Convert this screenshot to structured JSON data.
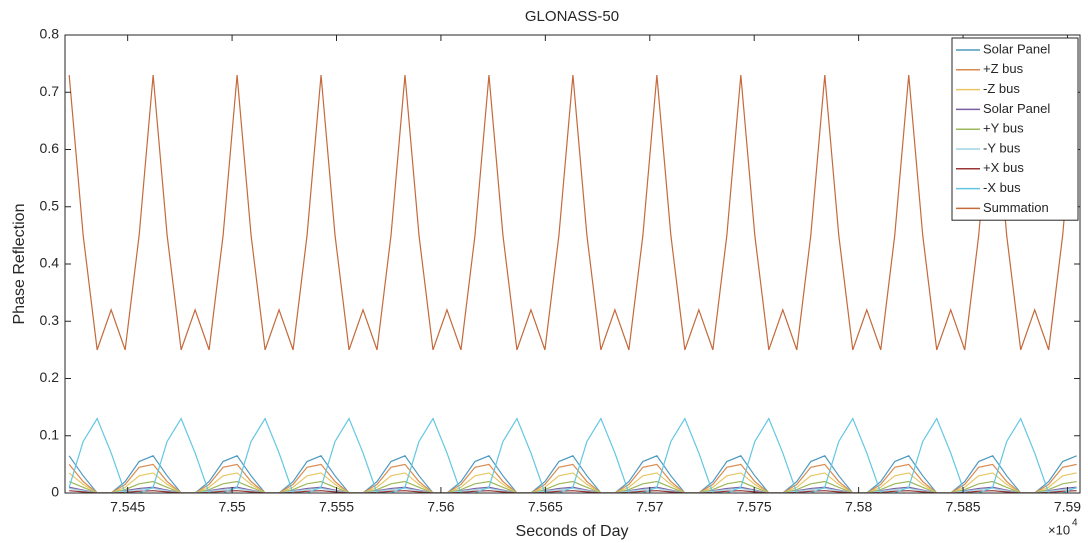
{
  "chart_data": {
    "type": "line",
    "title": "GLONASS-50",
    "xlabel": "Seconds of Day",
    "ylabel": "Phase Reflection",
    "x_multiplier": {
      "base": "×10",
      "exponent": "4"
    },
    "xlim": [
      75420,
      75906
    ],
    "ylim": [
      0,
      0.8
    ],
    "xticks": [
      {
        "value": 75450,
        "label": "7.545"
      },
      {
        "value": 75500,
        "label": "7.55"
      },
      {
        "value": 75550,
        "label": "7.555"
      },
      {
        "value": 75600,
        "label": "7.56"
      },
      {
        "value": 75650,
        "label": "7.565"
      },
      {
        "value": 75700,
        "label": "7.57"
      },
      {
        "value": 75750,
        "label": "7.575"
      },
      {
        "value": 75800,
        "label": "7.58"
      },
      {
        "value": 75850,
        "label": "7.585"
      },
      {
        "value": 75900,
        "label": "7.59"
      }
    ],
    "yticks": [
      0,
      0.1,
      0.2,
      0.3,
      0.4,
      0.5,
      0.6,
      0.7,
      0.8
    ],
    "grid": false,
    "legend": "upper right",
    "x": [
      75422,
      75428.7,
      75435.4,
      75442.1,
      75448.8,
      75455.5,
      75462.2,
      75468.9,
      75475.6,
      75482.3,
      75489,
      75495.7,
      75502.4,
      75509.1,
      75515.8,
      75522.5,
      75529.2,
      75535.9,
      75542.6,
      75549.3,
      75556,
      75562.7,
      75569.4,
      75576.1,
      75582.8,
      75589.5,
      75596.2,
      75602.9,
      75609.6,
      75616.3,
      75623,
      75629.7,
      75636.4,
      75643.1,
      75649.8,
      75656.5,
      75663.2,
      75669.9,
      75676.6,
      75683.3,
      75690,
      75696.7,
      75703.4,
      75710.1,
      75716.8,
      75723.5,
      75730.2,
      75736.9,
      75743.6,
      75750.3,
      75757,
      75763.7,
      75770.4,
      75777.1,
      75783.8,
      75790.5,
      75797.2,
      75803.9,
      75810.6,
      75817.3,
      75824,
      75830.7,
      75837.4,
      75844.1,
      75850.8,
      75857.5,
      75864.2,
      75870.9,
      75877.6,
      75884.3,
      75891,
      75897.7,
      75904.4
    ],
    "series": [
      {
        "name": "Solar Panel",
        "color": "#4f9ac0",
        "values": [
          0.065,
          0.03,
          0,
          0,
          0.02,
          0.055,
          0.065,
          0.03,
          0,
          0,
          0.02,
          0.055,
          0.065,
          0.03,
          0,
          0,
          0.02,
          0.055,
          0.065,
          0.03,
          0,
          0,
          0.02,
          0.055,
          0.065,
          0.03,
          0,
          0,
          0.02,
          0.055,
          0.065,
          0.03,
          0,
          0,
          0.02,
          0.055,
          0.065,
          0.03,
          0,
          0,
          0.02,
          0.055,
          0.065,
          0.03,
          0,
          0,
          0.02,
          0.055,
          0.065,
          0.03,
          0,
          0,
          0.02,
          0.055,
          0.065,
          0.03,
          0,
          0,
          0.02,
          0.055,
          0.065,
          0.03,
          0,
          0,
          0.02,
          0.055,
          0.065,
          0.03,
          0,
          0,
          0.02,
          0.055,
          0.065
        ]
      },
      {
        "name": "+Z bus",
        "color": "#d98a50",
        "values": [
          0.05,
          0.02,
          0,
          0,
          0.015,
          0.045,
          0.05,
          0.02,
          0,
          0,
          0.015,
          0.045,
          0.05,
          0.02,
          0,
          0,
          0.015,
          0.045,
          0.05,
          0.02,
          0,
          0,
          0.015,
          0.045,
          0.05,
          0.02,
          0,
          0,
          0.015,
          0.045,
          0.05,
          0.02,
          0,
          0,
          0.015,
          0.045,
          0.05,
          0.02,
          0,
          0,
          0.015,
          0.045,
          0.05,
          0.02,
          0,
          0,
          0.015,
          0.045,
          0.05,
          0.02,
          0,
          0,
          0.015,
          0.045,
          0.05,
          0.02,
          0,
          0,
          0.015,
          0.045,
          0.05,
          0.02,
          0,
          0,
          0.015,
          0.045,
          0.05,
          0.02,
          0,
          0,
          0.015,
          0.045,
          0.05
        ]
      },
      {
        "name": "-Z bus",
        "color": "#e8c560",
        "values": [
          0.035,
          0.015,
          0,
          0,
          0.01,
          0.03,
          0.035,
          0.015,
          0,
          0,
          0.01,
          0.03,
          0.035,
          0.015,
          0,
          0,
          0.01,
          0.03,
          0.035,
          0.015,
          0,
          0,
          0.01,
          0.03,
          0.035,
          0.015,
          0,
          0,
          0.01,
          0.03,
          0.035,
          0.015,
          0,
          0,
          0.01,
          0.03,
          0.035,
          0.015,
          0,
          0,
          0.01,
          0.03,
          0.035,
          0.015,
          0,
          0,
          0.01,
          0.03,
          0.035,
          0.015,
          0,
          0,
          0.01,
          0.03,
          0.035,
          0.015,
          0,
          0,
          0.01,
          0.03,
          0.035,
          0.015,
          0,
          0,
          0.01,
          0.03,
          0.035,
          0.015,
          0,
          0,
          0.01,
          0.03,
          0.035
        ]
      },
      {
        "name": "Solar Panel",
        "color": "#7b5ea3",
        "values": [
          0.01,
          0.005,
          0,
          0,
          0.004,
          0.008,
          0.01,
          0.005,
          0,
          0,
          0.004,
          0.008,
          0.01,
          0.005,
          0,
          0,
          0.004,
          0.008,
          0.01,
          0.005,
          0,
          0,
          0.004,
          0.008,
          0.01,
          0.005,
          0,
          0,
          0.004,
          0.008,
          0.01,
          0.005,
          0,
          0,
          0.004,
          0.008,
          0.01,
          0.005,
          0,
          0,
          0.004,
          0.008,
          0.01,
          0.005,
          0,
          0,
          0.004,
          0.008,
          0.01,
          0.005,
          0,
          0,
          0.004,
          0.008,
          0.01,
          0.005,
          0,
          0,
          0.004,
          0.008,
          0.01,
          0.005,
          0,
          0,
          0.004,
          0.008,
          0.01,
          0.005,
          0,
          0,
          0.004,
          0.008,
          0.01
        ]
      },
      {
        "name": "+Y bus",
        "color": "#9cb85c",
        "values": [
          0.02,
          0.01,
          0,
          0,
          0.006,
          0.016,
          0.02,
          0.01,
          0,
          0,
          0.006,
          0.016,
          0.02,
          0.01,
          0,
          0,
          0.006,
          0.016,
          0.02,
          0.01,
          0,
          0,
          0.006,
          0.016,
          0.02,
          0.01,
          0,
          0,
          0.006,
          0.016,
          0.02,
          0.01,
          0,
          0,
          0.006,
          0.016,
          0.02,
          0.01,
          0,
          0,
          0.006,
          0.016,
          0.02,
          0.01,
          0,
          0,
          0.006,
          0.016,
          0.02,
          0.01,
          0,
          0,
          0.006,
          0.016,
          0.02,
          0.01,
          0,
          0,
          0.006,
          0.016,
          0.02,
          0.01,
          0,
          0,
          0.006,
          0.016,
          0.02,
          0.01,
          0,
          0,
          0.006,
          0.016,
          0.02
        ]
      },
      {
        "name": "-Y bus",
        "color": "#9fd4e4",
        "values": [
          0.008,
          0.004,
          0,
          0,
          0.003,
          0.006,
          0.008,
          0.004,
          0,
          0,
          0.003,
          0.006,
          0.008,
          0.004,
          0,
          0,
          0.003,
          0.006,
          0.008,
          0.004,
          0,
          0,
          0.003,
          0.006,
          0.008,
          0.004,
          0,
          0,
          0.003,
          0.006,
          0.008,
          0.004,
          0,
          0,
          0.003,
          0.006,
          0.008,
          0.004,
          0,
          0,
          0.003,
          0.006,
          0.008,
          0.004,
          0,
          0,
          0.003,
          0.006,
          0.008,
          0.004,
          0,
          0,
          0.003,
          0.006,
          0.008,
          0.004,
          0,
          0,
          0.003,
          0.006,
          0.008,
          0.004,
          0,
          0,
          0.003,
          0.006,
          0.008,
          0.004,
          0,
          0,
          0.003,
          0.006,
          0.008
        ]
      },
      {
        "name": "+X bus",
        "color": "#9a3535",
        "values": [
          0.004,
          0.002,
          0,
          0,
          0.001,
          0.003,
          0.004,
          0.002,
          0,
          0,
          0.001,
          0.003,
          0.004,
          0.002,
          0,
          0,
          0.001,
          0.003,
          0.004,
          0.002,
          0,
          0,
          0.001,
          0.003,
          0.004,
          0.002,
          0,
          0,
          0.001,
          0.003,
          0.004,
          0.002,
          0,
          0,
          0.001,
          0.003,
          0.004,
          0.002,
          0,
          0,
          0.001,
          0.003,
          0.004,
          0.002,
          0,
          0,
          0.001,
          0.003,
          0.004,
          0.002,
          0,
          0,
          0.001,
          0.003,
          0.004,
          0.002,
          0,
          0,
          0.001,
          0.003,
          0.004,
          0.002,
          0,
          0,
          0.001,
          0.003,
          0.004,
          0.002,
          0,
          0,
          0.001,
          0.003,
          0.004
        ]
      },
      {
        "name": "-X bus",
        "color": "#62c6e2",
        "values": [
          0.01,
          0.09,
          0.13,
          0.07,
          0,
          0,
          0.01,
          0.09,
          0.13,
          0.07,
          0,
          0,
          0.01,
          0.09,
          0.13,
          0.07,
          0,
          0,
          0.01,
          0.09,
          0.13,
          0.07,
          0,
          0,
          0.01,
          0.09,
          0.13,
          0.07,
          0,
          0,
          0.01,
          0.09,
          0.13,
          0.07,
          0,
          0,
          0.01,
          0.09,
          0.13,
          0.07,
          0,
          0,
          0.01,
          0.09,
          0.13,
          0.07,
          0,
          0,
          0.01,
          0.09,
          0.13,
          0.07,
          0,
          0,
          0.01,
          0.09,
          0.13,
          0.07,
          0,
          0,
          0.01,
          0.09,
          0.13,
          0.07,
          0,
          0,
          0.01,
          0.09,
          0.13,
          0.07,
          0,
          0,
          0.01
        ]
      },
      {
        "name": "Summation",
        "color": "#c46a3c",
        "values": [
          0.73,
          0.45,
          0.25,
          0.32,
          0.25,
          0.45,
          0.73,
          0.45,
          0.25,
          0.32,
          0.25,
          0.45,
          0.73,
          0.45,
          0.25,
          0.32,
          0.25,
          0.45,
          0.73,
          0.45,
          0.25,
          0.32,
          0.25,
          0.45,
          0.73,
          0.45,
          0.25,
          0.32,
          0.25,
          0.45,
          0.73,
          0.45,
          0.25,
          0.32,
          0.25,
          0.45,
          0.73,
          0.45,
          0.25,
          0.32,
          0.25,
          0.45,
          0.73,
          0.45,
          0.25,
          0.32,
          0.25,
          0.45,
          0.73,
          0.45,
          0.25,
          0.32,
          0.25,
          0.45,
          0.73,
          0.45,
          0.25,
          0.32,
          0.25,
          0.45,
          0.73,
          0.45,
          0.25,
          0.32,
          0.25,
          0.45,
          0.73,
          0.45,
          0.25,
          0.32,
          0.25,
          0.45,
          0.73
        ]
      }
    ]
  }
}
